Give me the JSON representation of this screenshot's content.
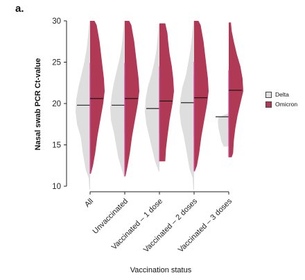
{
  "panel_label": "a.",
  "chart_data": {
    "type": "violin",
    "title": "",
    "xlabel": "Vaccination status",
    "ylabel": "Nasal swab PCR Ct-value",
    "ylim": [
      9,
      30.5
    ],
    "yticks": [
      10,
      15,
      20,
      25,
      30
    ],
    "categories": [
      "All",
      "Unvaccinated",
      "Vaccinated – 1 dose",
      "Vaccinated – 2 doses",
      "Vaccinated – 3 doses"
    ],
    "series": [
      {
        "name": "Delta",
        "color": "#dedede",
        "side": "left",
        "groups": [
          {
            "median": 19.8,
            "min": 9.6,
            "max": 30,
            "profile": [
              [
                9.6,
                0.05
              ],
              [
                11,
                0.1
              ],
              [
                12,
                0.3
              ],
              [
                14,
                0.5
              ],
              [
                16,
                0.65
              ],
              [
                17.5,
                0.9
              ],
              [
                19,
                1.0
              ],
              [
                20.5,
                0.95
              ],
              [
                22,
                0.8
              ],
              [
                23.5,
                0.6
              ],
              [
                25,
                0.4
              ],
              [
                26.5,
                0.25
              ],
              [
                28,
                0.15
              ],
              [
                29,
                0.1
              ],
              [
                30,
                0.05
              ]
            ]
          },
          {
            "median": 19.8,
            "min": 11.1,
            "max": 30,
            "profile": [
              [
                11.1,
                0.05
              ],
              [
                12,
                0.2
              ],
              [
                13.5,
                0.45
              ],
              [
                15,
                0.6
              ],
              [
                16.5,
                0.75
              ],
              [
                18,
                0.95
              ],
              [
                19.5,
                1.0
              ],
              [
                21,
                0.9
              ],
              [
                22.5,
                0.75
              ],
              [
                24,
                0.55
              ],
              [
                25.5,
                0.35
              ],
              [
                27,
                0.2
              ],
              [
                28.5,
                0.12
              ],
              [
                30,
                0.05
              ]
            ]
          },
          {
            "median": 19.4,
            "min": 11.8,
            "max": 29.6,
            "profile": [
              [
                11.8,
                0.05
              ],
              [
                13,
                0.3
              ],
              [
                14.5,
                0.5
              ],
              [
                16,
                0.7
              ],
              [
                17.5,
                0.9
              ],
              [
                19,
                1.0
              ],
              [
                20.5,
                0.95
              ],
              [
                22,
                0.8
              ],
              [
                23.5,
                0.55
              ],
              [
                25,
                0.35
              ],
              [
                26.5,
                0.2
              ],
              [
                28,
                0.12
              ],
              [
                29.6,
                0.05
              ]
            ]
          },
          {
            "median": 20.1,
            "min": 9.6,
            "max": 30,
            "profile": [
              [
                9.6,
                0.05
              ],
              [
                11,
                0.1
              ],
              [
                12,
                0.3
              ],
              [
                14,
                0.5
              ],
              [
                16,
                0.7
              ],
              [
                17.5,
                0.9
              ],
              [
                19,
                1.0
              ],
              [
                20.5,
                0.95
              ],
              [
                22,
                0.8
              ],
              [
                23.5,
                0.55
              ],
              [
                25,
                0.4
              ],
              [
                26.5,
                0.25
              ],
              [
                28,
                0.15
              ],
              [
                29,
                0.1
              ],
              [
                30,
                0.05
              ]
            ]
          },
          {
            "median": 18.4,
            "min": 14.8,
            "max": 18.8,
            "profile": [
              [
                14.8,
                0.35
              ],
              [
                15.4,
                0.5
              ],
              [
                16.2,
                0.6
              ],
              [
                17,
                0.7
              ],
              [
                17.8,
                0.75
              ],
              [
                18.3,
                0.7
              ],
              [
                18.8,
                0.1
              ]
            ]
          }
        ]
      },
      {
        "name": "Omicron",
        "color": "#b03a55",
        "side": "right",
        "groups": [
          {
            "median": 20.6,
            "min": 11.5,
            "max": 30,
            "profile": [
              [
                11.5,
                0.05
              ],
              [
                12.5,
                0.2
              ],
              [
                14,
                0.35
              ],
              [
                16,
                0.5
              ],
              [
                18,
                0.7
              ],
              [
                20,
                0.9
              ],
              [
                21.5,
                1.0
              ],
              [
                23,
                0.95
              ],
              [
                24.5,
                0.85
              ],
              [
                26,
                0.75
              ],
              [
                27.5,
                0.65
              ],
              [
                28.5,
                0.55
              ],
              [
                29.5,
                0.45
              ],
              [
                30,
                0.3
              ]
            ]
          },
          {
            "median": 20.6,
            "min": 11.2,
            "max": 30,
            "profile": [
              [
                11.2,
                0.05
              ],
              [
                12.5,
                0.2
              ],
              [
                14,
                0.35
              ],
              [
                16,
                0.5
              ],
              [
                18,
                0.7
              ],
              [
                20,
                0.9
              ],
              [
                21.5,
                1.0
              ],
              [
                23,
                0.95
              ],
              [
                24.5,
                0.85
              ],
              [
                26,
                0.75
              ],
              [
                27.5,
                0.65
              ],
              [
                28.5,
                0.55
              ],
              [
                29.5,
                0.45
              ],
              [
                30,
                0.3
              ]
            ]
          },
          {
            "median": 20.3,
            "min": 13,
            "max": 29.7,
            "profile": [
              [
                13,
                0.4
              ],
              [
                14.5,
                0.45
              ],
              [
                16,
                0.55
              ],
              [
                18,
                0.7
              ],
              [
                20,
                0.9
              ],
              [
                21.5,
                1.0
              ],
              [
                23,
                0.95
              ],
              [
                24.5,
                0.85
              ],
              [
                26,
                0.7
              ],
              [
                27.5,
                0.6
              ],
              [
                28.5,
                0.55
              ],
              [
                29.7,
                0.4
              ]
            ]
          },
          {
            "median": 20.7,
            "min": 11.8,
            "max": 30,
            "profile": [
              [
                11.8,
                0.05
              ],
              [
                12.5,
                0.2
              ],
              [
                14,
                0.35
              ],
              [
                16,
                0.5
              ],
              [
                18,
                0.7
              ],
              [
                20,
                0.9
              ],
              [
                21.5,
                1.0
              ],
              [
                23,
                0.95
              ],
              [
                24.5,
                0.85
              ],
              [
                26,
                0.75
              ],
              [
                27.5,
                0.65
              ],
              [
                28.5,
                0.55
              ],
              [
                29.5,
                0.45
              ],
              [
                30,
                0.3
              ]
            ]
          },
          {
            "median": 21.6,
            "min": 13.5,
            "max": 29.8,
            "profile": [
              [
                13.5,
                0.2
              ],
              [
                14,
                0.3
              ],
              [
                15.5,
                0.35
              ],
              [
                17,
                0.45
              ],
              [
                18.5,
                0.6
              ],
              [
                20,
                0.8
              ],
              [
                21.5,
                1.0
              ],
              [
                23,
                0.95
              ],
              [
                24.5,
                0.8
              ],
              [
                26,
                0.55
              ],
              [
                27.5,
                0.35
              ],
              [
                28.8,
                0.2
              ],
              [
                29.8,
                0.15
              ]
            ]
          }
        ]
      }
    ],
    "grid": false,
    "legend_position": "right"
  }
}
